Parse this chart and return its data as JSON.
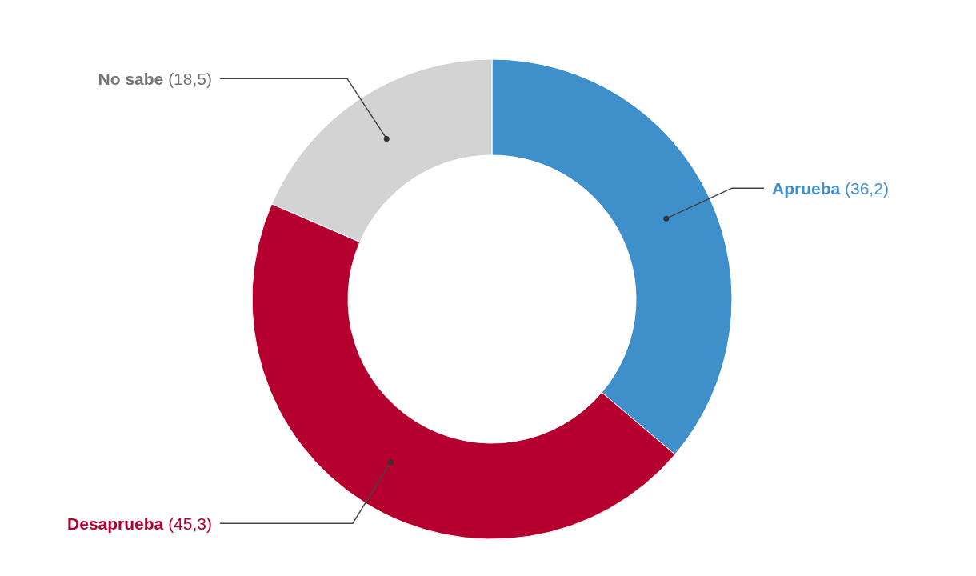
{
  "chart_data": {
    "type": "donut",
    "categories": [
      "Aprueba",
      "Desaprueba",
      "No sabe"
    ],
    "values": [
      36.2,
      45.3,
      18.5
    ],
    "colors": [
      "#3f8fca",
      "#b5002f",
      "#d3d3d3"
    ],
    "value_labels": [
      "(36,2)",
      "(45,3)",
      "(18,5)"
    ],
    "legend": false
  }
}
